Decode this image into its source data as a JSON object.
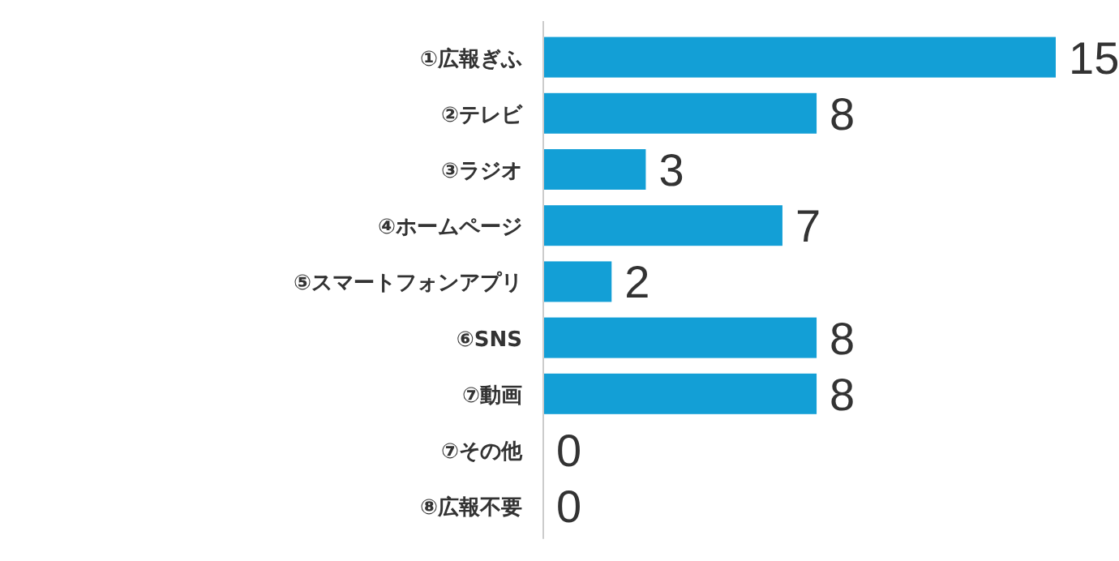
{
  "chart_data": {
    "type": "bar",
    "orientation": "horizontal",
    "categories": [
      "①広報ぎふ",
      "②テレビ",
      "③ラジオ",
      "④ホームページ",
      "⑤スマートフォンアプリ",
      "⑥SNS",
      "⑦動画",
      "⑦その他",
      "⑧広報不要"
    ],
    "values": [
      15,
      8,
      3,
      7,
      2,
      8,
      8,
      0,
      0
    ],
    "color": "#139fd6",
    "data_labels": true
  }
}
